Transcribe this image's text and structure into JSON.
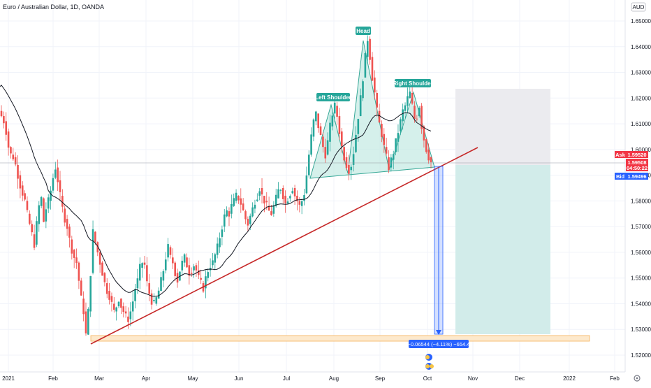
{
  "header": {
    "symbol_title": "Euro / Australian Dollar, 1D, OANDA",
    "currency_label": "AUD"
  },
  "chart_data": {
    "type": "candlestick",
    "title": "Euro / Australian Dollar, 1D, OANDA",
    "y_axis": {
      "ticks": [
        "1.65000",
        "1.64000",
        "1.63000",
        "1.62000",
        "1.61000",
        "1.60000",
        "1.59000",
        "1.58000",
        "1.57000",
        "1.56000",
        "1.55000",
        "1.54000",
        "1.53000",
        "1.52000"
      ],
      "range": [
        1.5165,
        1.6585
      ],
      "currency": "AUD"
    },
    "x_axis": {
      "ticks": [
        "2021",
        "Feb",
        "Mar",
        "Apr",
        "May",
        "Jun",
        "Jul",
        "Aug",
        "Sep",
        "Oct",
        "Nov",
        "Dec",
        "2022",
        "Feb"
      ]
    },
    "price_labels": {
      "ask_label": "Ask",
      "ask_value": "1.59520",
      "last_value": "1.59508",
      "countdown": "04:50:22",
      "bid_label": "Bid",
      "bid_value": "1.59496"
    },
    "annotations": {
      "left_shoulder": "Left Shoulder",
      "head": "Head",
      "right_shoulder": "Right Shoulder",
      "measure": "−0.06544 (−4.11%) −654.4"
    },
    "price_path": [
      1.613,
      1.611,
      1.607,
      1.601,
      1.598,
      1.597,
      1.594,
      1.59,
      1.586,
      1.583,
      1.58,
      1.575,
      1.571,
      1.567,
      1.563,
      1.571,
      1.578,
      1.581,
      1.572,
      1.577,
      1.58,
      1.584,
      1.589,
      1.593,
      1.588,
      1.582,
      1.577,
      1.573,
      1.57,
      1.565,
      1.561,
      1.558,
      1.556,
      1.549,
      1.542,
      1.537,
      1.528,
      1.537,
      1.552,
      1.568,
      1.564,
      1.56,
      1.556,
      1.552,
      1.548,
      1.545,
      1.543,
      1.54,
      1.537,
      1.539,
      1.542,
      1.539,
      1.537,
      1.535,
      1.534,
      1.537,
      1.541,
      1.546,
      1.549,
      1.554,
      1.556,
      1.555,
      1.548,
      1.544,
      1.541,
      1.54,
      1.542,
      1.545,
      1.549,
      1.553,
      1.558,
      1.562,
      1.558,
      1.556,
      1.552,
      1.549,
      1.553,
      1.556,
      1.558,
      1.555,
      1.552,
      1.553,
      1.555,
      1.553,
      1.55,
      1.548,
      1.546,
      1.55,
      1.553,
      1.555,
      1.556,
      1.559,
      1.562,
      1.566,
      1.57,
      1.574,
      1.576,
      1.575,
      1.578,
      1.58,
      1.582,
      1.581,
      1.579,
      1.576,
      1.573,
      1.571,
      1.574,
      1.577,
      1.58,
      1.582,
      1.585,
      1.582,
      1.58,
      1.578,
      1.576,
      1.575,
      1.578,
      1.581,
      1.584,
      1.585,
      1.582,
      1.579,
      1.581,
      1.583,
      1.585,
      1.582,
      1.58,
      1.578,
      1.58,
      1.583,
      1.59,
      1.598,
      1.605,
      1.611,
      1.614,
      1.609,
      1.605,
      1.601,
      1.598,
      1.603,
      1.609,
      1.614,
      1.617,
      1.613,
      1.607,
      1.601,
      1.597,
      1.594,
      1.592,
      1.594,
      1.599,
      1.606,
      1.613,
      1.62,
      1.628,
      1.636,
      1.643,
      1.636,
      1.628,
      1.622,
      1.615,
      1.61,
      1.606,
      1.601,
      1.597,
      1.593,
      1.596,
      1.599,
      1.603,
      1.607,
      1.611,
      1.615,
      1.617,
      1.62,
      1.622,
      1.617,
      1.612,
      1.613,
      1.617,
      1.609,
      1.604,
      1.6,
      1.597,
      1.595
    ]
  }
}
